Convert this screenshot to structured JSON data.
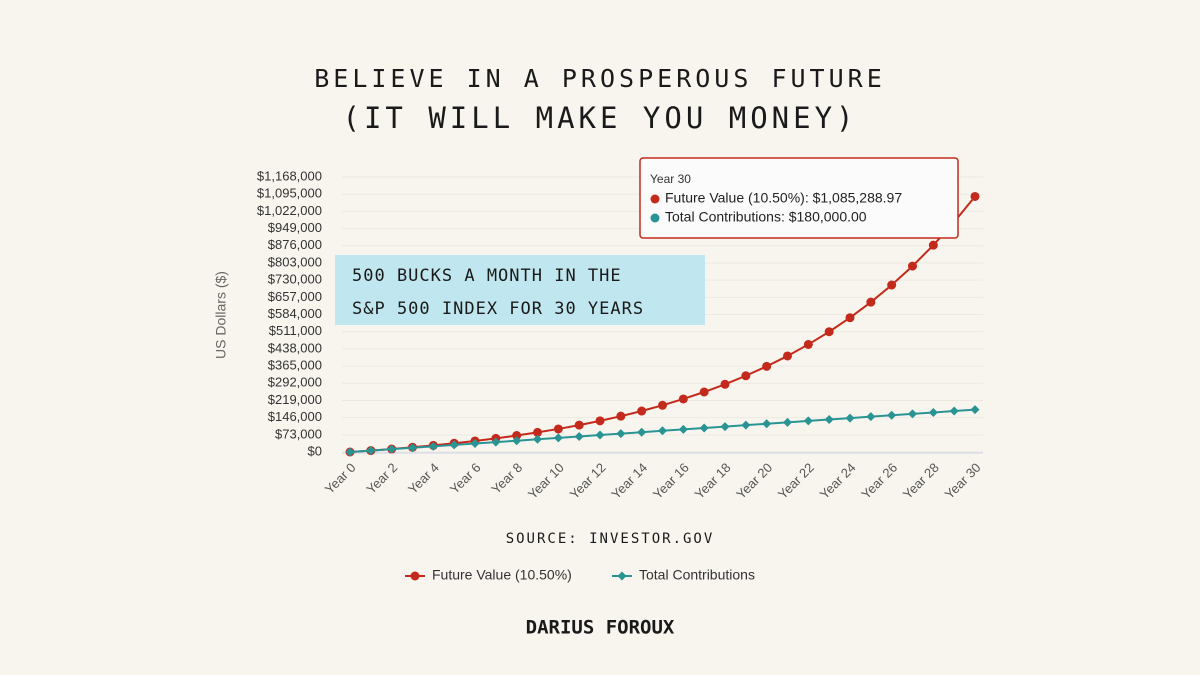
{
  "chart_data": {
    "type": "line",
    "title": [
      "BELIEVE IN A PROSPEROUS FUTURE",
      "(IT WILL MAKE YOU MONEY)"
    ],
    "annotation": [
      "500 BUCKS A MONTH IN THE",
      "S&P 500 INDEX FOR 30 YEARS"
    ],
    "source": "SOURCE: INVESTOR.GOV",
    "author": "DARIUS FOROUX",
    "y_label": "US Dollars ($)",
    "categories": [
      "Year 0",
      null,
      "Year 2",
      null,
      "Year 4",
      null,
      "Year 6",
      null,
      "Year 8",
      null,
      "Year 10",
      null,
      "Year 12",
      null,
      "Year 14",
      null,
      "Year 16",
      null,
      "Year 18",
      null,
      "Year 20",
      null,
      "Year 22",
      null,
      "Year 24",
      null,
      "Year 26",
      null,
      "Year 28",
      null,
      "Year 30"
    ],
    "series": [
      {
        "name": "Future Value (10.50%)",
        "color": "#c42a1c",
        "marker": "circle",
        "values": [
          0,
          6000,
          12630,
          19956,
          28052,
          36997,
          46882,
          57804,
          69874,
          83210,
          97947,
          114232,
          132226,
          152110,
          174082,
          198360,
          225188,
          254833,
          287590,
          323787,
          363785,
          407982,
          456820,
          510787,
          570419,
          636313,
          709126,
          789585,
          878491,
          976733,
          1085288.97
        ]
      },
      {
        "name": "Total Contributions",
        "color": "#2a9494",
        "marker": "diamond",
        "values": [
          0,
          6000,
          12000,
          18000,
          24000,
          30000,
          36000,
          42000,
          48000,
          54000,
          60000,
          66000,
          72000,
          78000,
          84000,
          90000,
          96000,
          102000,
          108000,
          114000,
          120000,
          126000,
          132000,
          138000,
          144000,
          150000,
          156000,
          162000,
          168000,
          174000,
          180000
        ]
      }
    ],
    "ylim": [
      0,
      1168000
    ],
    "yticks": [
      {
        "value": 0,
        "label": "$0"
      },
      {
        "value": 73000,
        "label": "$73,000"
      },
      {
        "value": 146000,
        "label": "$146,000"
      },
      {
        "value": 219000,
        "label": "$219,000"
      },
      {
        "value": 292000,
        "label": "$292,000"
      },
      {
        "value": 365000,
        "label": "$365,000"
      },
      {
        "value": 438000,
        "label": "$438,000"
      },
      {
        "value": 511000,
        "label": "$511,000"
      },
      {
        "value": 584000,
        "label": "$584,000"
      },
      {
        "value": 657000,
        "label": "$657,000"
      },
      {
        "value": 730000,
        "label": "$730,000"
      },
      {
        "value": 803000,
        "label": "$803,000"
      },
      {
        "value": 876000,
        "label": "$876,000"
      },
      {
        "value": 949000,
        "label": "$949,000"
      },
      {
        "value": 1022000,
        "label": "$1,022,000"
      },
      {
        "value": 1095000,
        "label": "$1,095,000"
      },
      {
        "value": 1168000,
        "label": "$1,168,000"
      }
    ],
    "grid": true,
    "tooltip": {
      "title": "Year 30",
      "lines": [
        "Future Value (10.50%): $1,085,288.97",
        "Total Contributions: $180,000.00"
      ]
    }
  }
}
